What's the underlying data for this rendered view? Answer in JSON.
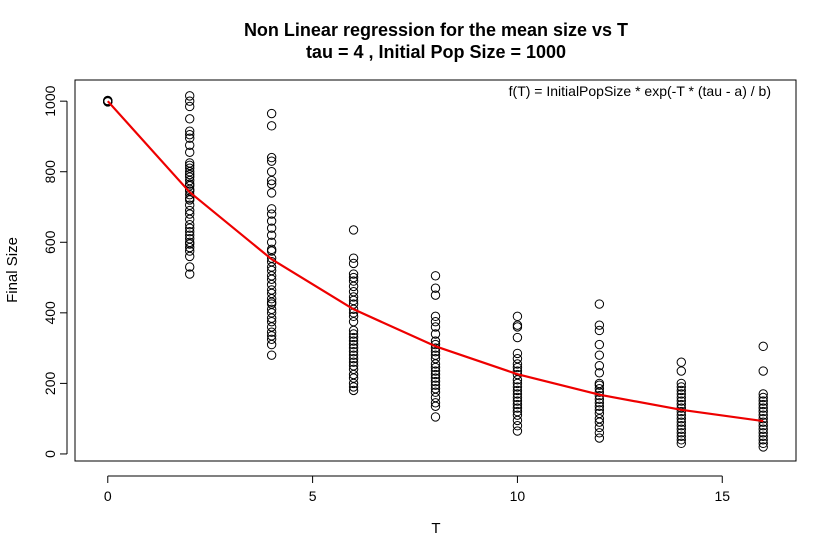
{
  "chart_data": {
    "type": "scatter",
    "title": "Non Linear regression for the mean size vs T",
    "subtitle": "tau =  4 , Initial Pop Size =  1000",
    "xlabel": "T",
    "ylabel": "Final Size",
    "annotation": "f(T) = InitialPopSize * exp(-T * (tau - a) / b)",
    "xlim": [
      -0.8,
      16.8
    ],
    "ylim": [
      -20,
      1060
    ],
    "x_ticks": [
      0,
      5,
      10,
      15
    ],
    "y_ticks": [
      0,
      200,
      400,
      600,
      800,
      1000
    ],
    "grid": false,
    "colors": {
      "points": "#000000",
      "fit_line": "#ee0000"
    },
    "series": [
      {
        "type": "scatter",
        "marker": "open-circle",
        "points": [
          {
            "x": 0,
            "y": [
              1000,
              1000,
              1000,
              1000,
              1000,
              998,
              1002,
              999
            ]
          },
          {
            "x": 2,
            "y": [
              1015,
              1000,
              985,
              950,
              915,
              905,
              895,
              875,
              855,
              825,
              818,
              810,
              800,
              792,
              785,
              775,
              765,
              760,
              750,
              745,
              735,
              725,
              720,
              705,
              690,
              680,
              665,
              650,
              640,
              630,
              620,
              610,
              600,
              595,
              585,
              575,
              560,
              530,
              510
            ]
          },
          {
            "x": 4,
            "y": [
              965,
              930,
              840,
              830,
              800,
              775,
              765,
              740,
              695,
              680,
              660,
              640,
              620,
              600,
              580,
              575,
              555,
              545,
              530,
              520,
              505,
              495,
              480,
              465,
              455,
              440,
              430,
              425,
              410,
              400,
              385,
              375,
              360,
              345,
              335,
              325,
              310,
              280
            ]
          },
          {
            "x": 6,
            "y": [
              635,
              555,
              540,
              510,
              500,
              490,
              475,
              460,
              445,
              435,
              425,
              410,
              400,
              390,
              375,
              350,
              340,
              330,
              320,
              310,
              300,
              290,
              280,
              270,
              260,
              250,
              240,
              225,
              215,
              200,
              190,
              180
            ]
          },
          {
            "x": 8,
            "y": [
              505,
              470,
              450,
              390,
              375,
              360,
              340,
              320,
              310,
              300,
              290,
              280,
              270,
              255,
              245,
              235,
              225,
              215,
              205,
              195,
              185,
              175,
              160,
              145,
              135,
              105
            ]
          },
          {
            "x": 10,
            "y": [
              390,
              365,
              360,
              330,
              285,
              270,
              255,
              245,
              235,
              225,
              210,
              200,
              190,
              180,
              170,
              160,
              150,
              140,
              130,
              120,
              110,
              95,
              80,
              65
            ]
          },
          {
            "x": 12,
            "y": [
              425,
              365,
              350,
              310,
              280,
              250,
              230,
              200,
              195,
              185,
              175,
              165,
              155,
              145,
              135,
              125,
              115,
              100,
              90,
              75,
              60,
              45
            ]
          },
          {
            "x": 14,
            "y": [
              260,
              235,
              200,
              190,
              180,
              170,
              160,
              150,
              140,
              130,
              120,
              110,
              100,
              90,
              80,
              70,
              60,
              50,
              40,
              30
            ]
          },
          {
            "x": 16,
            "y": [
              305,
              235,
              170,
              160,
              150,
              140,
              130,
              120,
              110,
              100,
              90,
              80,
              70,
              60,
              50,
              40,
              30,
              20
            ]
          }
        ]
      },
      {
        "type": "line",
        "x": [
          0,
          2,
          4,
          6,
          8,
          10,
          12,
          14,
          16
        ],
        "y": [
          1000,
          742,
          552,
          410,
          305,
          226,
          168,
          125,
          93
        ]
      }
    ]
  }
}
